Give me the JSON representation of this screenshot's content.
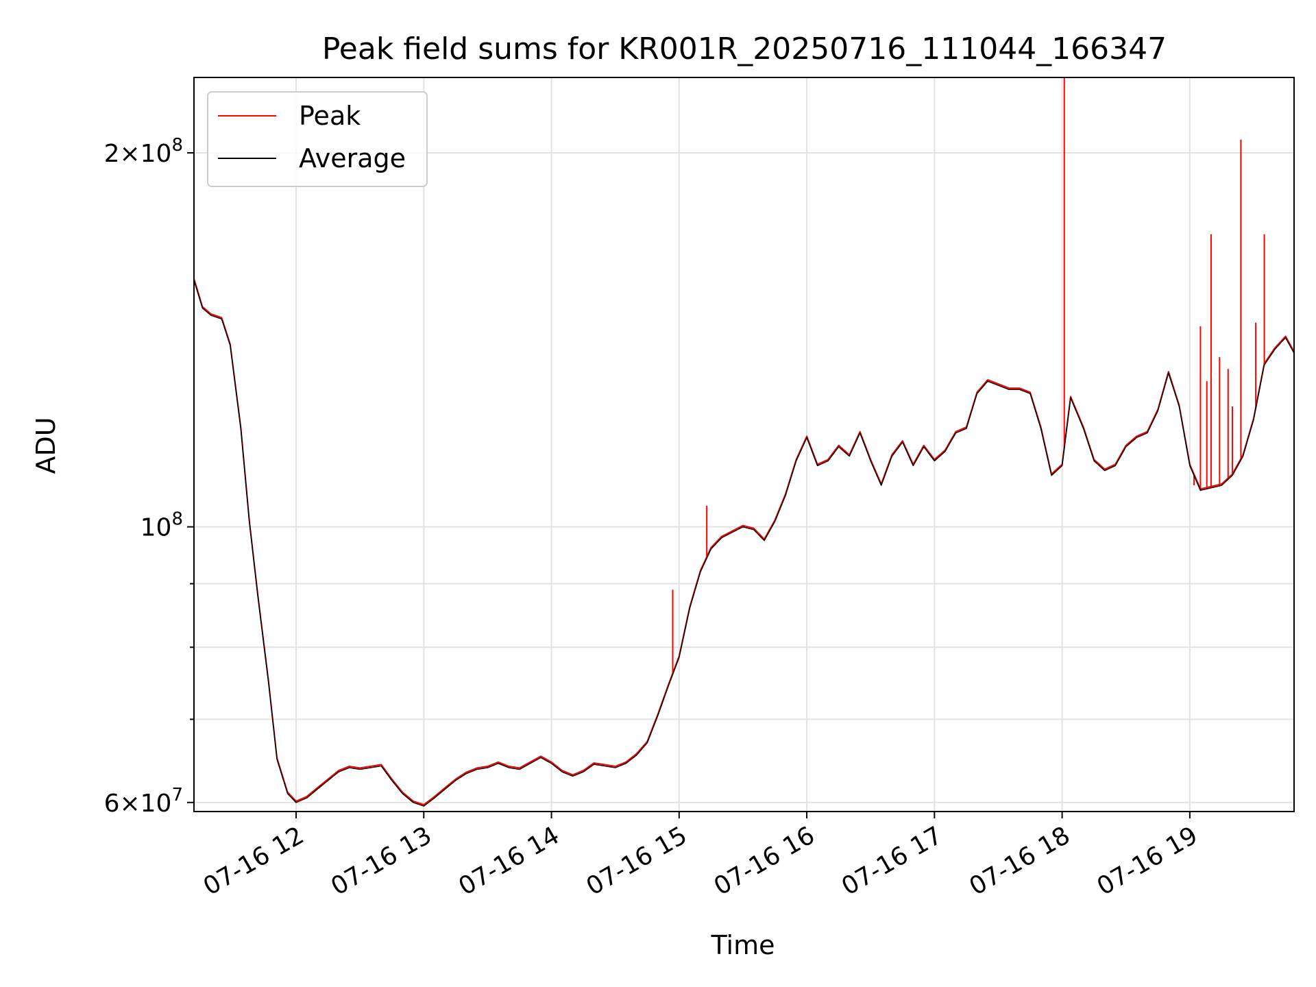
{
  "chart_data": {
    "type": "line",
    "title": "Peak field sums for KR001R_20250716_111044_166347",
    "xlabel": "Time",
    "ylabel": "ADU",
    "yscale": "log",
    "grid": true,
    "legend": {
      "placement": "top-left",
      "entries": [
        {
          "name": "Peak",
          "color": "#ff0000"
        },
        {
          "name": "Average",
          "color": "#000000"
        }
      ]
    },
    "x_range": [
      "2025-07-16 11:12",
      "2025-07-16 19:49"
    ],
    "ylim": [
      59000000,
      230000000
    ],
    "x_ticks": [
      {
        "t": "2025-07-16 12:00",
        "label": "07-16 12"
      },
      {
        "t": "2025-07-16 13:00",
        "label": "07-16 13"
      },
      {
        "t": "2025-07-16 14:00",
        "label": "07-16 14"
      },
      {
        "t": "2025-07-16 15:00",
        "label": "07-16 15"
      },
      {
        "t": "2025-07-16 16:00",
        "label": "07-16 16"
      },
      {
        "t": "2025-07-16 17:00",
        "label": "07-16 17"
      },
      {
        "t": "2025-07-16 18:00",
        "label": "07-16 18"
      },
      {
        "t": "2025-07-16 19:00",
        "label": "07-16 19"
      }
    ],
    "y_major_ticks": [
      {
        "value": 60000000,
        "mantissa": "6",
        "exp": "7"
      },
      {
        "value": 100000000,
        "mantissa": "",
        "exp": "8"
      },
      {
        "value": 200000000,
        "mantissa": "2",
        "exp": "8"
      }
    ],
    "y_minor_ticks": [
      70000000,
      80000000,
      90000000
    ],
    "series": [
      {
        "name": "Average",
        "color": "#000000",
        "points": [
          [
            "2025-07-16 11:12",
            158000000
          ],
          [
            "2025-07-16 11:16",
            150000000
          ],
          [
            "2025-07-16 11:20",
            148000000
          ],
          [
            "2025-07-16 11:25",
            147000000
          ],
          [
            "2025-07-16 11:29",
            140000000
          ],
          [
            "2025-07-16 11:34",
            120000000
          ],
          [
            "2025-07-16 11:38",
            101000000
          ],
          [
            "2025-07-16 11:42",
            88000000
          ],
          [
            "2025-07-16 11:47",
            75000000
          ],
          [
            "2025-07-16 11:51",
            65000000
          ],
          [
            "2025-07-16 11:56",
            61000000
          ],
          [
            "2025-07-16 12:00",
            60000000
          ],
          [
            "2025-07-16 12:05",
            60500000
          ],
          [
            "2025-07-16 12:10",
            61500000
          ],
          [
            "2025-07-16 12:15",
            62500000
          ],
          [
            "2025-07-16 12:20",
            63500000
          ],
          [
            "2025-07-16 12:25",
            64000000
          ],
          [
            "2025-07-16 12:30",
            63800000
          ],
          [
            "2025-07-16 12:35",
            64000000
          ],
          [
            "2025-07-16 12:40",
            64200000
          ],
          [
            "2025-07-16 12:45",
            62500000
          ],
          [
            "2025-07-16 12:50",
            61000000
          ],
          [
            "2025-07-16 12:55",
            60000000
          ],
          [
            "2025-07-16 13:00",
            59600000
          ],
          [
            "2025-07-16 13:05",
            60500000
          ],
          [
            "2025-07-16 13:10",
            61500000
          ],
          [
            "2025-07-16 13:15",
            62500000
          ],
          [
            "2025-07-16 13:20",
            63300000
          ],
          [
            "2025-07-16 13:25",
            63800000
          ],
          [
            "2025-07-16 13:30",
            64000000
          ],
          [
            "2025-07-16 13:35",
            64500000
          ],
          [
            "2025-07-16 13:40",
            64000000
          ],
          [
            "2025-07-16 13:45",
            63800000
          ],
          [
            "2025-07-16 13:50",
            64500000
          ],
          [
            "2025-07-16 13:55",
            65200000
          ],
          [
            "2025-07-16 14:00",
            64500000
          ],
          [
            "2025-07-16 14:05",
            63500000
          ],
          [
            "2025-07-16 14:10",
            63000000
          ],
          [
            "2025-07-16 14:15",
            63500000
          ],
          [
            "2025-07-16 14:20",
            64400000
          ],
          [
            "2025-07-16 14:25",
            64200000
          ],
          [
            "2025-07-16 14:30",
            64000000
          ],
          [
            "2025-07-16 14:35",
            64500000
          ],
          [
            "2025-07-16 14:40",
            65500000
          ],
          [
            "2025-07-16 14:45",
            67000000
          ],
          [
            "2025-07-16 14:50",
            70500000
          ],
          [
            "2025-07-16 14:55",
            74500000
          ],
          [
            "2025-07-16 15:00",
            78500000
          ],
          [
            "2025-07-16 15:05",
            86000000
          ],
          [
            "2025-07-16 15:10",
            92000000
          ],
          [
            "2025-07-16 15:15",
            96000000
          ],
          [
            "2025-07-16 15:20",
            98000000
          ],
          [
            "2025-07-16 15:25",
            99000000
          ],
          [
            "2025-07-16 15:30",
            100000000
          ],
          [
            "2025-07-16 15:35",
            99500000
          ],
          [
            "2025-07-16 15:40",
            97500000
          ],
          [
            "2025-07-16 15:45",
            101000000
          ],
          [
            "2025-07-16 15:50",
            106000000
          ],
          [
            "2025-07-16 15:55",
            113000000
          ],
          [
            "2025-07-16 16:00",
            118000000
          ],
          [
            "2025-07-16 16:05",
            112000000
          ],
          [
            "2025-07-16 16:10",
            113000000
          ],
          [
            "2025-07-16 16:15",
            116000000
          ],
          [
            "2025-07-16 16:20",
            114000000
          ],
          [
            "2025-07-16 16:25",
            119000000
          ],
          [
            "2025-07-16 16:30",
            113000000
          ],
          [
            "2025-07-16 16:35",
            108000000
          ],
          [
            "2025-07-16 16:40",
            114000000
          ],
          [
            "2025-07-16 16:45",
            117000000
          ],
          [
            "2025-07-16 16:50",
            112000000
          ],
          [
            "2025-07-16 16:55",
            116000000
          ],
          [
            "2025-07-16 17:00",
            113000000
          ],
          [
            "2025-07-16 17:05",
            115000000
          ],
          [
            "2025-07-16 17:10",
            119000000
          ],
          [
            "2025-07-16 17:15",
            120000000
          ],
          [
            "2025-07-16 17:20",
            128000000
          ],
          [
            "2025-07-16 17:25",
            131000000
          ],
          [
            "2025-07-16 17:30",
            130000000
          ],
          [
            "2025-07-16 17:35",
            129000000
          ],
          [
            "2025-07-16 17:40",
            129000000
          ],
          [
            "2025-07-16 17:45",
            128000000
          ],
          [
            "2025-07-16 17:50",
            120000000
          ],
          [
            "2025-07-16 17:55",
            110000000
          ],
          [
            "2025-07-16 18:00",
            112000000
          ],
          [
            "2025-07-16 18:04",
            127000000
          ],
          [
            "2025-07-16 18:10",
            120000000
          ],
          [
            "2025-07-16 18:15",
            113000000
          ],
          [
            "2025-07-16 18:20",
            111000000
          ],
          [
            "2025-07-16 18:25",
            112000000
          ],
          [
            "2025-07-16 18:30",
            116000000
          ],
          [
            "2025-07-16 18:35",
            118000000
          ],
          [
            "2025-07-16 18:40",
            119000000
          ],
          [
            "2025-07-16 18:45",
            124000000
          ],
          [
            "2025-07-16 18:50",
            133000000
          ],
          [
            "2025-07-16 18:55",
            125000000
          ],
          [
            "2025-07-16 19:00",
            112000000
          ],
          [
            "2025-07-16 19:05",
            107000000
          ],
          [
            "2025-07-16 19:10",
            107500000
          ],
          [
            "2025-07-16 19:15",
            108000000
          ],
          [
            "2025-07-16 19:20",
            110000000
          ],
          [
            "2025-07-16 19:25",
            114000000
          ],
          [
            "2025-07-16 19:30",
            122000000
          ],
          [
            "2025-07-16 19:35",
            135000000
          ],
          [
            "2025-07-16 19:40",
            139000000
          ],
          [
            "2025-07-16 19:45",
            142000000
          ],
          [
            "2025-07-16 19:49",
            138000000
          ]
        ]
      },
      {
        "name": "Peak",
        "color": "#ff0000",
        "note_values": "follows Average closely; isolated spikes listed",
        "spikes": [
          [
            "2025-07-16 14:57",
            89000000
          ],
          [
            "2025-07-16 15:13",
            104000000
          ],
          [
            "2025-07-16 18:01",
            230000000
          ],
          [
            "2025-07-16 19:02",
            108000000
          ],
          [
            "2025-07-16 19:05",
            145000000
          ],
          [
            "2025-07-16 19:08",
            131000000
          ],
          [
            "2025-07-16 19:10",
            172000000
          ],
          [
            "2025-07-16 19:14",
            137000000
          ],
          [
            "2025-07-16 19:18",
            134000000
          ],
          [
            "2025-07-16 19:20",
            125000000
          ],
          [
            "2025-07-16 19:24",
            205000000
          ],
          [
            "2025-07-16 19:31",
            146000000
          ],
          [
            "2025-07-16 19:35",
            172000000
          ]
        ]
      }
    ]
  }
}
